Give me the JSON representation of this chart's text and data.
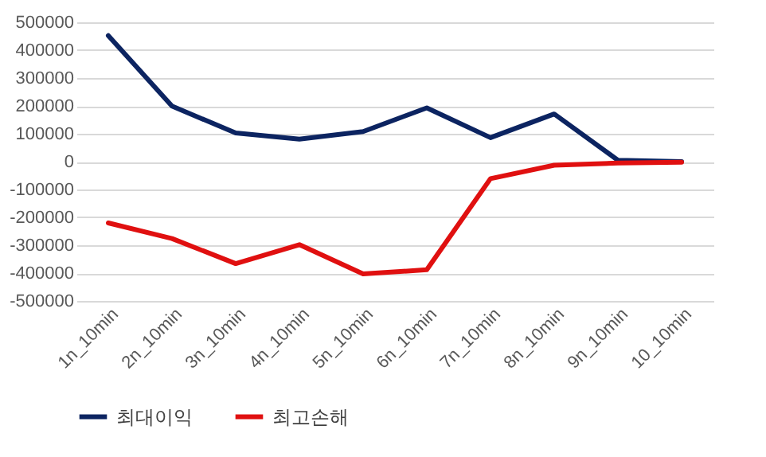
{
  "chart_data": {
    "type": "line",
    "categories": [
      "1n_10min",
      "2n_10min",
      "3n_10min",
      "4n_10min",
      "5n_10min",
      "6n_10min",
      "7n_10min",
      "8n_10min",
      "9n_10min",
      "10_10min"
    ],
    "series": [
      {
        "name": "최대이익",
        "color": "#0c2461",
        "values": [
          452000,
          199000,
          103000,
          81000,
          108000,
          193000,
          86000,
          171000,
          5000,
          0
        ]
      },
      {
        "name": "최고손해",
        "color": "#e01010",
        "values": [
          -220000,
          -276000,
          -366000,
          -298000,
          -403000,
          -388000,
          -61000,
          -13000,
          -5000,
          -2000
        ]
      }
    ],
    "ylim": [
      -500000,
      500000
    ],
    "yticks": [
      -500000,
      -400000,
      -300000,
      -200000,
      -100000,
      0,
      100000,
      200000,
      300000,
      400000,
      500000
    ],
    "grid": "y",
    "legend": "bottom",
    "marker": "none",
    "line_style": "solid"
  }
}
